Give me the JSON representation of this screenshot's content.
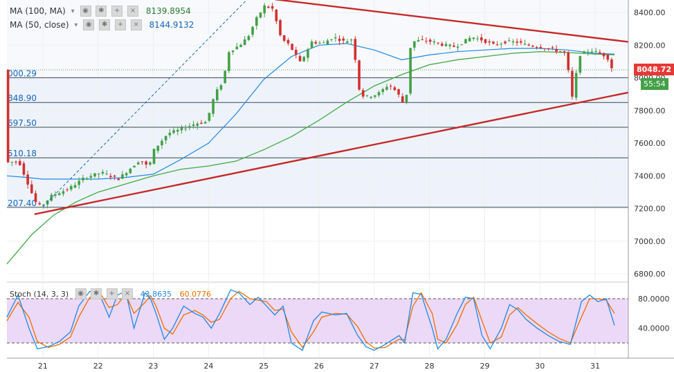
{
  "indicators": {
    "ma100": {
      "label": "MA (100, MA)",
      "value": "8139.8954",
      "color": "#2e7d32"
    },
    "ma50": {
      "label": "MA (50, close)",
      "value": "8144.9132",
      "color": "#1565c0"
    }
  },
  "stoch": {
    "label": "Stoch (14, 3, 3)",
    "k_value": "43.8635",
    "d_value": "60.0776",
    "k_color": "#1e88e5",
    "d_color": "#ef6c00"
  },
  "price_tag": {
    "value": "8048.72",
    "countdown": "55:54"
  },
  "chart_data": {
    "type": "candlestick",
    "price_axis": {
      "ticks": [
        6800,
        7000,
        7200,
        7400,
        7600,
        7800,
        8000,
        8200,
        8400
      ],
      "tick_labels": [
        "6800.00",
        "7000.00",
        "7200.00",
        "7400.00",
        "7600.00",
        "7800.00",
        "8000.00",
        "8200.00",
        "8400.00"
      ]
    },
    "x_axis": {
      "tick_labels": [
        "21",
        "22",
        "23",
        "24",
        "25",
        "26",
        "27",
        "28",
        "29",
        "30",
        "31"
      ],
      "range_days": [
        20.35,
        31.6
      ]
    },
    "fib_levels": [
      {
        "value": 8000.29,
        "label": "000.29"
      },
      {
        "value": 7848.9,
        "label": "848.90"
      },
      {
        "value": 7697.5,
        "label": "697.50"
      },
      {
        "value": 7510.18,
        "label": "510.18"
      },
      {
        "value": 7207.4,
        "label": "207.40"
      }
    ],
    "last_price": 8048.72,
    "price_points": [
      [
        20.35,
        7480
      ],
      [
        20.6,
        7490
      ],
      [
        20.9,
        7240
      ],
      [
        21.0,
        7210
      ],
      [
        21.2,
        7280
      ],
      [
        21.5,
        7320
      ],
      [
        21.8,
        7390
      ],
      [
        22.1,
        7420
      ],
      [
        22.4,
        7380
      ],
      [
        22.6,
        7440
      ],
      [
        22.8,
        7500
      ],
      [
        22.95,
        7450
      ],
      [
        23.05,
        7560
      ],
      [
        23.3,
        7660
      ],
      [
        23.5,
        7680
      ],
      [
        23.8,
        7720
      ],
      [
        24.0,
        7730
      ],
      [
        24.15,
        7900
      ],
      [
        24.3,
        7980
      ],
      [
        24.4,
        8160
      ],
      [
        24.6,
        8200
      ],
      [
        24.75,
        8250
      ],
      [
        24.9,
        8360
      ],
      [
        25.05,
        8440
      ],
      [
        25.2,
        8420
      ],
      [
        25.35,
        8240
      ],
      [
        25.5,
        8200
      ],
      [
        25.7,
        8090
      ],
      [
        25.9,
        8220
      ],
      [
        26.1,
        8210
      ],
      [
        26.3,
        8250
      ],
      [
        26.5,
        8220
      ],
      [
        26.65,
        8240
      ],
      [
        26.75,
        7940
      ],
      [
        26.85,
        7880
      ],
      [
        27.1,
        7900
      ],
      [
        27.3,
        7960
      ],
      [
        27.45,
        7910
      ],
      [
        27.6,
        7820
      ],
      [
        27.7,
        8220
      ],
      [
        27.9,
        8230
      ],
      [
        28.1,
        8220
      ],
      [
        28.3,
        8200
      ],
      [
        28.5,
        8190
      ],
      [
        28.8,
        8250
      ],
      [
        29.0,
        8230
      ],
      [
        29.2,
        8200
      ],
      [
        29.4,
        8220
      ],
      [
        29.6,
        8220
      ],
      [
        29.8,
        8200
      ],
      [
        30.0,
        8190
      ],
      [
        30.2,
        8180
      ],
      [
        30.5,
        8150
      ],
      [
        30.62,
        7880
      ],
      [
        30.75,
        8140
      ],
      [
        30.95,
        8170
      ],
      [
        31.1,
        8150
      ],
      [
        31.25,
        8130
      ],
      [
        31.35,
        8048.72
      ]
    ],
    "sma50": [
      [
        20.35,
        7400
      ],
      [
        20.7,
        7390
      ],
      [
        21.0,
        7380
      ],
      [
        21.5,
        7380
      ],
      [
        22.0,
        7380
      ],
      [
        22.5,
        7390
      ],
      [
        23.0,
        7410
      ],
      [
        23.5,
        7500
      ],
      [
        24.0,
        7600
      ],
      [
        24.5,
        7780
      ],
      [
        25.0,
        7990
      ],
      [
        25.5,
        8130
      ],
      [
        26.0,
        8200
      ],
      [
        26.5,
        8210
      ],
      [
        27.0,
        8170
      ],
      [
        27.5,
        8110
      ],
      [
        28.0,
        8140
      ],
      [
        28.5,
        8160
      ],
      [
        29.0,
        8170
      ],
      [
        29.5,
        8180
      ],
      [
        30.0,
        8180
      ],
      [
        30.5,
        8170
      ],
      [
        31.0,
        8150
      ],
      [
        31.35,
        8145
      ]
    ],
    "ma100": [
      [
        20.35,
        6860
      ],
      [
        20.8,
        7040
      ],
      [
        21.2,
        7160
      ],
      [
        21.6,
        7240
      ],
      [
        22.0,
        7300
      ],
      [
        22.5,
        7350
      ],
      [
        23.0,
        7400
      ],
      [
        23.5,
        7440
      ],
      [
        24.0,
        7460
      ],
      [
        24.5,
        7490
      ],
      [
        25.0,
        7560
      ],
      [
        25.5,
        7640
      ],
      [
        26.0,
        7740
      ],
      [
        26.5,
        7850
      ],
      [
        27.0,
        7950
      ],
      [
        27.5,
        8020
      ],
      [
        28.0,
        8080
      ],
      [
        28.5,
        8110
      ],
      [
        29.0,
        8130
      ],
      [
        29.5,
        8150
      ],
      [
        30.0,
        8160
      ],
      [
        30.5,
        8155
      ],
      [
        31.0,
        8145
      ],
      [
        31.35,
        8140
      ]
    ],
    "trendlines": [
      {
        "from": [
          20.85,
          7165
        ],
        "to": [
          31.6,
          7910
        ],
        "color": "#c62828"
      },
      {
        "from": [
          25.2,
          8480
        ],
        "to": [
          31.6,
          8220
        ],
        "color": "#c62828"
      }
    ],
    "projection_line": {
      "from": [
        21.0,
        7210
      ],
      "to": [
        24.7,
        8480
      ]
    },
    "stochastic": {
      "levels": [
        80,
        20
      ],
      "axis_ticks": [
        40,
        80
      ],
      "axis_labels": [
        "40.0000",
        "80.0000"
      ],
      "k": [
        [
          20.35,
          55
        ],
        [
          20.55,
          85
        ],
        [
          20.75,
          40
        ],
        [
          20.9,
          12
        ],
        [
          21.1,
          15
        ],
        [
          21.3,
          22
        ],
        [
          21.5,
          35
        ],
        [
          21.65,
          70
        ],
        [
          21.85,
          90
        ],
        [
          22.05,
          82
        ],
        [
          22.2,
          55
        ],
        [
          22.35,
          85
        ],
        [
          22.5,
          90
        ],
        [
          22.65,
          40
        ],
        [
          22.85,
          88
        ],
        [
          22.95,
          80
        ],
        [
          23.05,
          60
        ],
        [
          23.2,
          25
        ],
        [
          23.35,
          40
        ],
        [
          23.55,
          70
        ],
        [
          23.75,
          60
        ],
        [
          23.9,
          55
        ],
        [
          24.05,
          40
        ],
        [
          24.2,
          60
        ],
        [
          24.4,
          92
        ],
        [
          24.55,
          88
        ],
        [
          24.75,
          72
        ],
        [
          24.9,
          82
        ],
        [
          25.05,
          70
        ],
        [
          25.2,
          58
        ],
        [
          25.35,
          70
        ],
        [
          25.5,
          20
        ],
        [
          25.7,
          10
        ],
        [
          25.9,
          50
        ],
        [
          26.05,
          62
        ],
        [
          26.3,
          58
        ],
        [
          26.5,
          60
        ],
        [
          26.7,
          30
        ],
        [
          26.85,
          15
        ],
        [
          27.0,
          10
        ],
        [
          27.2,
          18
        ],
        [
          27.45,
          30
        ],
        [
          27.55,
          20
        ],
        [
          27.7,
          88
        ],
        [
          27.85,
          86
        ],
        [
          28.05,
          40
        ],
        [
          28.15,
          12
        ],
        [
          28.3,
          25
        ],
        [
          28.5,
          60
        ],
        [
          28.65,
          82
        ],
        [
          28.8,
          80
        ],
        [
          28.95,
          30
        ],
        [
          29.1,
          12
        ],
        [
          29.3,
          40
        ],
        [
          29.45,
          72
        ],
        [
          29.6,
          65
        ],
        [
          29.75,
          52
        ],
        [
          29.95,
          40
        ],
        [
          30.15,
          30
        ],
        [
          30.35,
          22
        ],
        [
          30.55,
          18
        ],
        [
          30.75,
          76
        ],
        [
          30.9,
          85
        ],
        [
          31.05,
          76
        ],
        [
          31.2,
          80
        ],
        [
          31.35,
          43.8635
        ]
      ],
      "d": [
        [
          20.35,
          50
        ],
        [
          20.55,
          75
        ],
        [
          20.75,
          55
        ],
        [
          20.9,
          22
        ],
        [
          21.1,
          14
        ],
        [
          21.3,
          18
        ],
        [
          21.5,
          28
        ],
        [
          21.65,
          55
        ],
        [
          21.85,
          82
        ],
        [
          22.05,
          86
        ],
        [
          22.2,
          68
        ],
        [
          22.35,
          72
        ],
        [
          22.5,
          86
        ],
        [
          22.65,
          60
        ],
        [
          22.85,
          75
        ],
        [
          22.95,
          84
        ],
        [
          23.05,
          70
        ],
        [
          23.2,
          40
        ],
        [
          23.35,
          32
        ],
        [
          23.55,
          58
        ],
        [
          23.75,
          64
        ],
        [
          23.9,
          58
        ],
        [
          24.05,
          48
        ],
        [
          24.2,
          52
        ],
        [
          24.4,
          80
        ],
        [
          24.55,
          90
        ],
        [
          24.75,
          80
        ],
        [
          24.9,
          78
        ],
        [
          25.05,
          76
        ],
        [
          25.2,
          64
        ],
        [
          25.35,
          66
        ],
        [
          25.5,
          35
        ],
        [
          25.7,
          14
        ],
        [
          25.9,
          35
        ],
        [
          26.05,
          55
        ],
        [
          26.3,
          60
        ],
        [
          26.5,
          59
        ],
        [
          26.7,
          42
        ],
        [
          26.85,
          22
        ],
        [
          27.0,
          13
        ],
        [
          27.2,
          14
        ],
        [
          27.45,
          25
        ],
        [
          27.55,
          24
        ],
        [
          27.7,
          70
        ],
        [
          27.85,
          88
        ],
        [
          28.05,
          60
        ],
        [
          28.15,
          25
        ],
        [
          28.3,
          20
        ],
        [
          28.5,
          45
        ],
        [
          28.65,
          72
        ],
        [
          28.8,
          82
        ],
        [
          28.95,
          50
        ],
        [
          29.1,
          20
        ],
        [
          29.3,
          28
        ],
        [
          29.45,
          58
        ],
        [
          29.6,
          68
        ],
        [
          29.75,
          58
        ],
        [
          29.95,
          46
        ],
        [
          30.15,
          35
        ],
        [
          30.35,
          26
        ],
        [
          30.55,
          20
        ],
        [
          30.75,
          55
        ],
        [
          30.9,
          80
        ],
        [
          31.05,
          80
        ],
        [
          31.2,
          78
        ],
        [
          31.35,
          60.0776
        ]
      ]
    }
  }
}
